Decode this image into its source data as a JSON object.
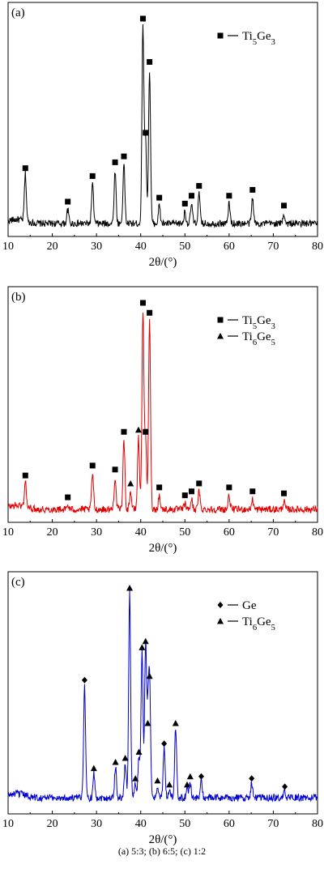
{
  "caption": "(a) 5:3; (b) 6:5; (c) 1:2",
  "chart_data": [
    {
      "type": "line",
      "panel_label": "(a)",
      "color": "#000000",
      "xlabel": "2θ/(°)",
      "xlim": [
        10,
        80
      ],
      "xticks": [
        10,
        20,
        30,
        40,
        50,
        60,
        70,
        80
      ],
      "legend": {
        "placement": "top-right",
        "entries": [
          {
            "marker": "square",
            "label": "Ti5Ge3"
          }
        ]
      },
      "series": [
        {
          "label": "Ti5Ge3",
          "marker": "square",
          "peaks": [
            {
              "x": 13.9,
              "y": 0.24
            },
            {
              "x": 23.5,
              "y": 0.07
            },
            {
              "x": 29.1,
              "y": 0.2
            },
            {
              "x": 34.2,
              "y": 0.27
            },
            {
              "x": 36.2,
              "y": 0.3
            },
            {
              "x": 40.5,
              "y": 1.0
            },
            {
              "x": 41.1,
              "y": 0.42
            },
            {
              "x": 42.0,
              "y": 0.78
            },
            {
              "x": 44.2,
              "y": 0.09
            },
            {
              "x": 50.0,
              "y": 0.06
            },
            {
              "x": 51.5,
              "y": 0.1
            },
            {
              "x": 53.2,
              "y": 0.15
            },
            {
              "x": 60.0,
              "y": 0.1
            },
            {
              "x": 65.3,
              "y": 0.13
            },
            {
              "x": 72.4,
              "y": 0.05
            }
          ]
        }
      ]
    },
    {
      "type": "line",
      "panel_label": "(b)",
      "color": "#e00000",
      "xlabel": "2θ/(°)",
      "xlim": [
        10,
        80
      ],
      "xticks": [
        10,
        20,
        30,
        40,
        50,
        60,
        70,
        80
      ],
      "legend": {
        "placement": "top-right",
        "entries": [
          {
            "marker": "square",
            "label": "Ti5Ge3"
          },
          {
            "marker": "triangle",
            "label": "Ti6Ge5"
          }
        ]
      },
      "series": [
        {
          "label": "Ti5Ge3",
          "marker": "square",
          "peaks": [
            {
              "x": 13.9,
              "y": 0.13
            },
            {
              "x": 23.5,
              "y": 0.02
            },
            {
              "x": 29.1,
              "y": 0.18
            },
            {
              "x": 34.2,
              "y": 0.16
            },
            {
              "x": 36.2,
              "y": 0.35
            },
            {
              "x": 40.5,
              "y": 1.0
            },
            {
              "x": 41.1,
              "y": 0.35
            },
            {
              "x": 42.0,
              "y": 0.95
            },
            {
              "x": 44.2,
              "y": 0.07
            },
            {
              "x": 50.0,
              "y": 0.03
            },
            {
              "x": 51.5,
              "y": 0.05
            },
            {
              "x": 53.2,
              "y": 0.09
            },
            {
              "x": 60.0,
              "y": 0.07
            },
            {
              "x": 65.3,
              "y": 0.05
            },
            {
              "x": 72.4,
              "y": 0.04
            }
          ]
        },
        {
          "label": "Ti6Ge5",
          "marker": "triangle",
          "peaks": [
            {
              "x": 37.7,
              "y": 0.09
            },
            {
              "x": 39.5,
              "y": 0.36
            }
          ]
        }
      ]
    },
    {
      "type": "line",
      "panel_label": "(c)",
      "color": "#0000d0",
      "xlabel": "2θ/(°)",
      "xlim": [
        10,
        80
      ],
      "xticks": [
        10,
        20,
        30,
        40,
        50,
        60,
        70,
        80
      ],
      "legend": {
        "placement": "top-right",
        "entries": [
          {
            "marker": "diamond",
            "label": "Ge"
          },
          {
            "marker": "triangle",
            "label": "Ti6Ge5"
          }
        ]
      },
      "series": [
        {
          "label": "Ge",
          "marker": "diamond",
          "peaks": [
            {
              "x": 27.3,
              "y": 0.55
            },
            {
              "x": 45.3,
              "y": 0.24
            },
            {
              "x": 53.7,
              "y": 0.08
            },
            {
              "x": 65.1,
              "y": 0.07
            },
            {
              "x": 72.6,
              "y": 0.03
            }
          ]
        },
        {
          "label": "Ti6Ge5",
          "marker": "triangle",
          "peaks": [
            {
              "x": 29.4,
              "y": 0.12
            },
            {
              "x": 34.3,
              "y": 0.15
            },
            {
              "x": 36.5,
              "y": 0.17
            },
            {
              "x": 37.5,
              "y": 1.0
            },
            {
              "x": 38.8,
              "y": 0.07
            },
            {
              "x": 39.6,
              "y": 0.2
            },
            {
              "x": 40.3,
              "y": 0.71
            },
            {
              "x": 41.1,
              "y": 0.74
            },
            {
              "x": 41.6,
              "y": 0.34
            },
            {
              "x": 42.0,
              "y": 0.57
            },
            {
              "x": 43.8,
              "y": 0.06
            },
            {
              "x": 46.5,
              "y": 0.04
            },
            {
              "x": 47.9,
              "y": 0.34
            },
            {
              "x": 50.5,
              "y": 0.04
            },
            {
              "x": 51.2,
              "y": 0.08
            }
          ]
        }
      ]
    }
  ]
}
